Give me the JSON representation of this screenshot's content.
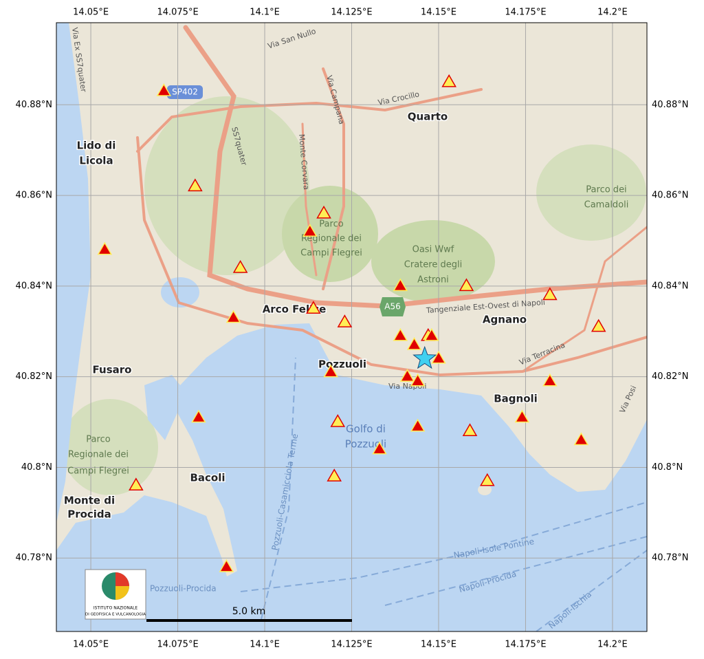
{
  "map": {
    "xlim": [
      14.0401,
      14.2099
    ],
    "ylim": [
      40.7638,
      40.8981
    ],
    "xticks": [
      {
        "value": 14.05,
        "label": "14.05°E"
      },
      {
        "value": 14.075,
        "label": "14.075°E"
      },
      {
        "value": 14.1,
        "label": "14.1°E"
      },
      {
        "value": 14.125,
        "label": "14.125°E"
      },
      {
        "value": 14.15,
        "label": "14.15°E"
      },
      {
        "value": 14.175,
        "label": "14.175°E"
      },
      {
        "value": 14.2,
        "label": "14.2°E"
      }
    ],
    "yticks": [
      {
        "value": 40.78,
        "label": "40.78°N"
      },
      {
        "value": 40.8,
        "label": "40.8°N"
      },
      {
        "value": 40.82,
        "label": "40.82°N"
      },
      {
        "value": 40.84,
        "label": "40.84°N"
      },
      {
        "value": 40.86,
        "label": "40.86°N"
      },
      {
        "value": 40.88,
        "label": "40.88°N"
      }
    ],
    "grid": true,
    "places": [
      "Quarto",
      "Lido di",
      "Licola",
      "Arco Felice",
      "Agnano",
      "Pozzuoli",
      "Fusaro",
      "Bagnoli",
      "Bacoli",
      "Monte di",
      "Procida"
    ],
    "areas": [
      "Parco",
      "Regionale dei",
      "Campi Flegrei",
      "Oasi Wwf",
      "Cratere degli",
      "Astroni",
      "Parco dei",
      "Camaldoli",
      "Golfo di",
      "Pozzuoli",
      "Parco",
      "Regionale dei",
      "Campi Flegrei"
    ],
    "roads": [
      "Via San Nullo",
      "Via Crocillo",
      "Via Campana",
      "Monte Corvara",
      "SS7quater",
      "SP402",
      "A56",
      "Tangenziale Est-Ovest di Napoli",
      "Via Terracina",
      "Via Napoli",
      "Via Posi",
      "Pozzuoli-Casamicciola Terme",
      "Napoli-Isole Pontine",
      "Napoli-Procida",
      "Napoli-Ischia",
      "Pozzuoli-Procida",
      "Via Ex SS7quater"
    ],
    "scale_label": "5.0 km",
    "logo": [
      "ISTITUTO NAZIONALE",
      "DI GEOFISICA E VULCANOLOGIA"
    ],
    "events_old": {
      "color": "#ffee55",
      "edge": "#e00000",
      "lon": [
        14.153,
        14.08,
        14.117,
        14.093,
        14.114,
        14.123,
        14.158,
        14.182,
        14.196,
        14.147,
        14.121,
        14.159,
        14.164,
        14.12,
        14.063
      ],
      "lat": [
        40.885,
        40.862,
        40.856,
        40.844,
        40.835,
        40.832,
        40.84,
        40.838,
        40.831,
        40.829,
        40.81,
        40.808,
        40.797,
        40.798,
        40.796
      ]
    },
    "events_recent": {
      "color": "#e00000",
      "edge": "#ffee55",
      "lon": [
        14.071,
        14.054,
        14.113,
        14.139,
        14.091,
        14.139,
        14.143,
        14.148,
        14.15,
        14.119,
        14.141,
        14.144,
        14.081,
        14.144,
        14.133,
        14.174,
        14.182,
        14.191,
        14.089
      ],
      "lat": [
        40.883,
        40.848,
        40.852,
        40.84,
        40.833,
        40.829,
        40.827,
        40.829,
        40.824,
        40.821,
        40.82,
        40.819,
        40.811,
        40.809,
        40.804,
        40.811,
        40.819,
        40.806,
        40.778
      ]
    },
    "mainshock": {
      "lon": 14.146,
      "lat": 40.824,
      "color": "#40d0f0"
    }
  }
}
